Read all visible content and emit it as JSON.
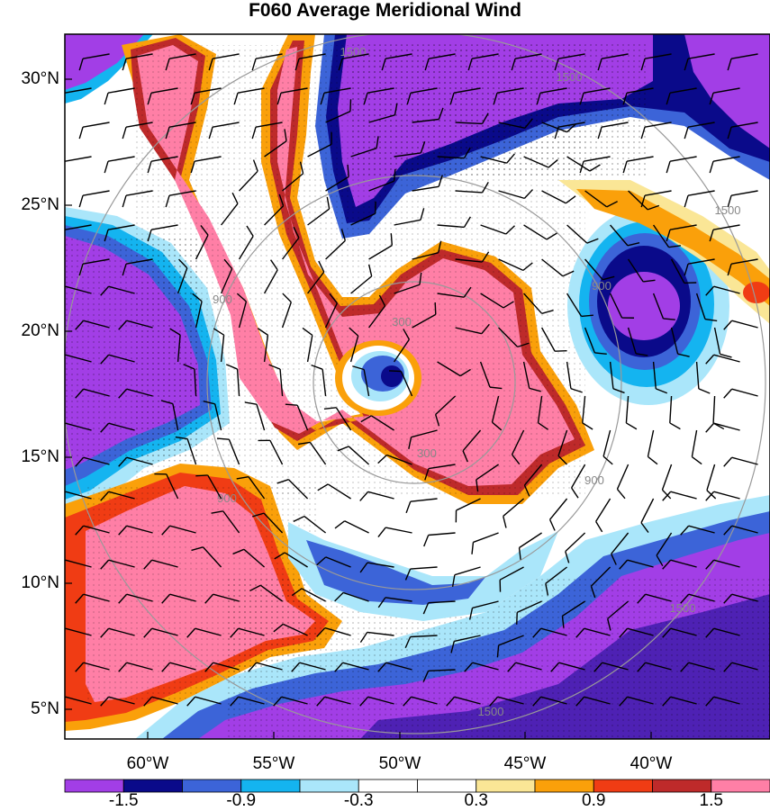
{
  "title": "F060 Average Meridional Wind",
  "lat_labels": [
    "30°N",
    "25°N",
    "20°N",
    "15°N",
    "10°N",
    "5°N"
  ],
  "lon_labels": [
    "60°W",
    "55°W",
    "50°W",
    "45°W",
    "40°W"
  ],
  "colorbar": {
    "colors": [
      "#a23ee6",
      "#0a0a8a",
      "#3c64d8",
      "#14b4f0",
      "#aae6fa",
      "#ffffff",
      "#ffffff",
      "#fae696",
      "#faa00a",
      "#f03c14",
      "#be2a2a",
      "#ff7fa6"
    ],
    "labels": [
      "-1.5",
      "-0.9",
      "-0.3",
      "0.3",
      "0.9",
      "1.5"
    ]
  },
  "range_ring_labels": [
    "300",
    "300",
    "900",
    "900",
    "900",
    "900",
    "1500",
    "1500",
    "1500",
    "1500",
    "1500"
  ]
}
